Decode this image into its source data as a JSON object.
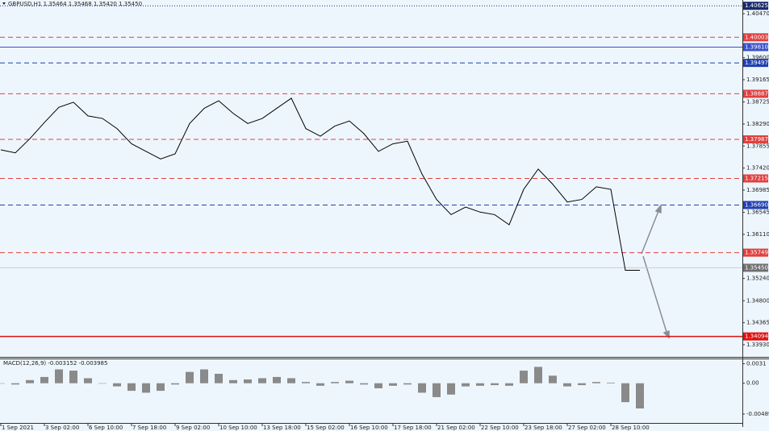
{
  "chart_data": [
    {
      "type": "line",
      "title": "GBPUSD,H1  1.35464 1.35468 1.35420 1.35450",
      "categories": [
        "1 Sep 2021",
        null,
        null,
        "3 Sep 02:00",
        null,
        null,
        "6 Sep 10:00",
        null,
        null,
        "7 Sep 18:00",
        null,
        null,
        "9 Sep 02:00",
        null,
        null,
        "10 Sep 10:00",
        null,
        null,
        "13 Sep 18:00",
        null,
        null,
        "15 Sep 02:00",
        null,
        null,
        "16 Sep 10:00",
        null,
        null,
        "17 Sep 18:00",
        null,
        null,
        "21 Sep 02:00",
        null,
        null,
        "22 Sep 10:00",
        null,
        null,
        "23 Sep 18:00",
        null,
        null,
        "27 Sep 02:00",
        null,
        null,
        "28 Sep 10:00",
        null,
        null
      ],
      "values": [
        1.3778,
        1.3772,
        1.38,
        1.3832,
        1.3862,
        1.3872,
        1.3845,
        1.384,
        1.382,
        1.379,
        1.3775,
        1.376,
        1.377,
        1.383,
        1.386,
        1.3875,
        1.385,
        1.383,
        1.384,
        1.386,
        1.388,
        1.382,
        1.3805,
        1.3825,
        1.3835,
        1.381,
        1.3775,
        1.379,
        1.3795,
        1.373,
        1.368,
        1.365,
        1.3665,
        1.3655,
        1.365,
        1.363,
        1.37,
        1.374,
        1.371,
        1.3675,
        1.368,
        1.3705,
        1.37,
        1.354,
        1.354
      ],
      "color": "#000000",
      "ylim": [
        1.3369,
        1.4074
      ],
      "yticks": [
        {
          "value": 1.4047,
          "label": "1.40470"
        },
        {
          "value": 1.396,
          "label": "1.39600"
        },
        1.39165,
        1.38725,
        {
          "value": 1.3829,
          "label": "1.38290"
        },
        1.37855,
        {
          "value": 1.3742,
          "label": "1.37420"
        },
        1.36985,
        1.36545,
        {
          "value": 1.3611,
          "label": "1.36110"
        },
        {
          "value": 1.3524,
          "label": "1.35240"
        },
        {
          "value": 1.348,
          "label": "1.34800"
        },
        1.34365,
        {
          "value": 1.3393,
          "label": "1.33930"
        }
      ],
      "levels": [
        {
          "value": 1.40625,
          "label": "1.40625",
          "color": "#1a2a6c",
          "style": "dotted"
        },
        {
          "value": 1.40003,
          "label": "1.40003",
          "color": "#e04040",
          "style": "dashed"
        },
        {
          "value": 1.3981,
          "label": "1.39810",
          "color": "#3a50c8",
          "style": "solid"
        },
        {
          "value": 1.39497,
          "label": "1.39497",
          "color": "#2040b0",
          "style": "dashed"
        },
        {
          "value": 1.38887,
          "label": "1.38887",
          "color": "#e04040",
          "style": "dashed"
        },
        {
          "value": 1.37987,
          "label": "1.37987",
          "color": "#e04040",
          "style": "dashed"
        },
        {
          "value": 1.37215,
          "label": "1.37215",
          "color": "#e04040",
          "style": "dashed"
        },
        {
          "value": 1.3669,
          "label": "1.36690",
          "color": "#2040b0",
          "style": "dashed"
        },
        {
          "value": 1.35749,
          "label": "1.35749",
          "color": "#e04040",
          "style": "dashed"
        },
        {
          "value": 1.3545,
          "label": "1.35450",
          "color": "#707070",
          "style": "current"
        },
        {
          "value": 1.34094,
          "label": "1.34094",
          "color": "#e01010",
          "style": "solid"
        }
      ]
    },
    {
      "type": "bar",
      "title": "MACD(12,26,9) -0.003152 -0.003985",
      "values": [
        0.0,
        -0.0002,
        0.0005,
        0.001,
        0.0022,
        0.002,
        0.0008,
        0.0,
        -0.0005,
        -0.0012,
        -0.0015,
        -0.0012,
        -0.0002,
        0.0018,
        0.0022,
        0.0015,
        0.0005,
        0.0006,
        0.0008,
        0.001,
        0.0008,
        0.0002,
        -0.0004,
        0.0002,
        0.0004,
        -0.0002,
        -0.0008,
        -0.0004,
        -0.0002,
        -0.0015,
        -0.0022,
        -0.0018,
        -0.0005,
        -0.0004,
        -0.0003,
        -0.0004,
        0.002,
        0.0026,
        0.0012,
        -0.0005,
        -0.0003,
        0.0002,
        0.0001,
        -0.003,
        -0.004
      ],
      "color": "#8a8a8a",
      "ylim": [
        -0.0063,
        0.0038
      ],
      "yticks": [
        0.0031,
        {
          "value": 0,
          "label": "0.00"
        },
        -0.004894
      ]
    }
  ]
}
